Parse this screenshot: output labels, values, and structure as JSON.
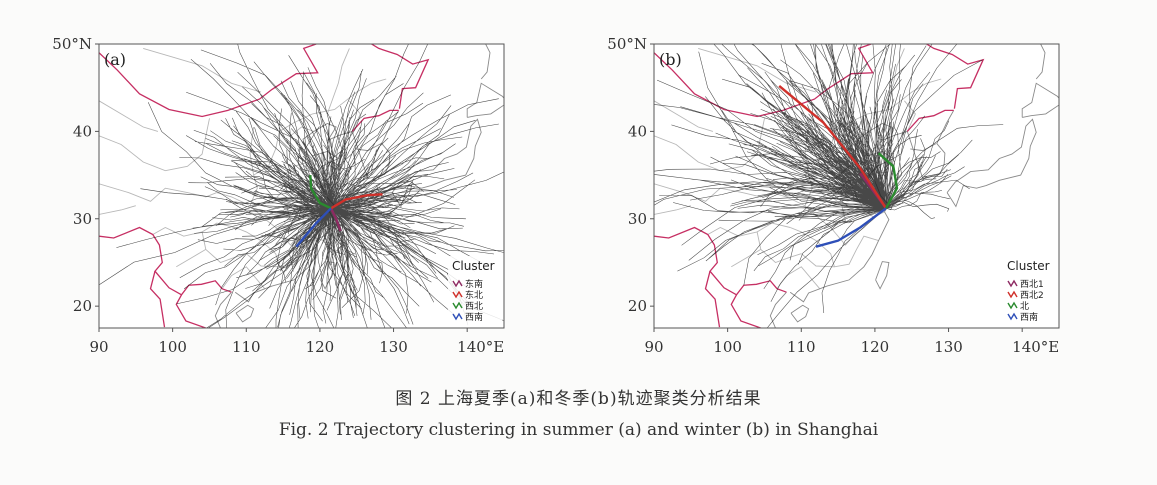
{
  "caption": {
    "cn": "图 2   上海夏季(a)和冬季(b)轨迹聚类分析结果",
    "en": "Fig. 2   Trajectory clustering in summer (a) and winter (b) in Shanghai"
  },
  "colors": {
    "trajectory": "#1a1a1a",
    "border": "#c62f63",
    "province": "#b8b8b8",
    "coast": "#8a8a8a",
    "frame": "#555555"
  },
  "panels": [
    {
      "label": "(a)",
      "legend_title": "Cluster",
      "legend": [
        {
          "name": "东南",
          "color": "#8e2a62"
        },
        {
          "name": "东北",
          "color": "#d0302a"
        },
        {
          "name": "西北",
          "color": "#2a8a2e"
        },
        {
          "name": "西南",
          "color": "#2e4fb8"
        }
      ],
      "trajectory_count": 380,
      "spread": "summer"
    },
    {
      "label": "(b)",
      "legend_title": "Cluster",
      "legend": [
        {
          "name": "西北1",
          "color": "#8e2a62"
        },
        {
          "name": "西北2",
          "color": "#d0302a"
        },
        {
          "name": "北",
          "color": "#2a8a2e"
        },
        {
          "name": "西南",
          "color": "#2e4fb8"
        }
      ],
      "trajectory_count": 520,
      "spread": "winter"
    }
  ],
  "chart_data": [
    {
      "type": "line",
      "title": "(a)",
      "x_ticks": [
        "90",
        "100",
        "110",
        "120",
        "130",
        "140°E"
      ],
      "y_ticks": [
        "50°N",
        "40",
        "30",
        "20"
      ],
      "xlim": [
        90,
        145
      ],
      "ylim": [
        17.5,
        50
      ],
      "origin": {
        "lon": 121.5,
        "lat": 31.2
      },
      "series": [
        {
          "name": "东南",
          "color": "#8e2a62",
          "points": [
            [
              121.5,
              31.2
            ],
            [
              122.2,
              30.0
            ],
            [
              122.8,
              28.6
            ]
          ]
        },
        {
          "name": "东北",
          "color": "#d0302a",
          "points": [
            [
              121.5,
              31.2
            ],
            [
              123.5,
              32.2
            ],
            [
              126.5,
              32.7
            ],
            [
              128.5,
              32.8
            ]
          ]
        },
        {
          "name": "西北",
          "color": "#2a8a2e",
          "points": [
            [
              121.5,
              31.2
            ],
            [
              120.0,
              31.8
            ],
            [
              118.8,
              33.5
            ],
            [
              118.7,
              35.0
            ]
          ]
        },
        {
          "name": "西南",
          "color": "#2e4fb8",
          "points": [
            [
              121.5,
              31.2
            ],
            [
              119.5,
              29.5
            ],
            [
              118.0,
              28.0
            ],
            [
              116.8,
              26.8
            ]
          ]
        }
      ]
    },
    {
      "type": "line",
      "title": "(b)",
      "x_ticks": [
        "90",
        "100",
        "110",
        "120",
        "130",
        "140°E"
      ],
      "y_ticks": [
        "50°N",
        "40",
        "30",
        "20"
      ],
      "xlim": [
        90,
        145
      ],
      "ylim": [
        17.5,
        50
      ],
      "origin": {
        "lon": 121.5,
        "lat": 31.2
      },
      "series": [
        {
          "name": "西北1",
          "color": "#8e2a62",
          "points": [
            [
              121.5,
              31.2
            ],
            [
              119.5,
              33.5
            ],
            [
              118.0,
              35.2
            ]
          ]
        },
        {
          "name": "西北2",
          "color": "#d0302a",
          "points": [
            [
              121.5,
              31.2
            ],
            [
              118.0,
              35.8
            ],
            [
              113.0,
              41.0
            ],
            [
              107.0,
              45.2
            ]
          ]
        },
        {
          "name": "北",
          "color": "#2a8a2e",
          "points": [
            [
              121.5,
              31.2
            ],
            [
              123.0,
              33.5
            ],
            [
              122.5,
              36.0
            ],
            [
              120.5,
              37.5
            ]
          ]
        },
        {
          "name": "西南",
          "color": "#2e4fb8",
          "points": [
            [
              121.5,
              31.2
            ],
            [
              118.0,
              29.0
            ],
            [
              115.0,
              27.5
            ],
            [
              112.0,
              26.8
            ]
          ]
        }
      ]
    }
  ]
}
